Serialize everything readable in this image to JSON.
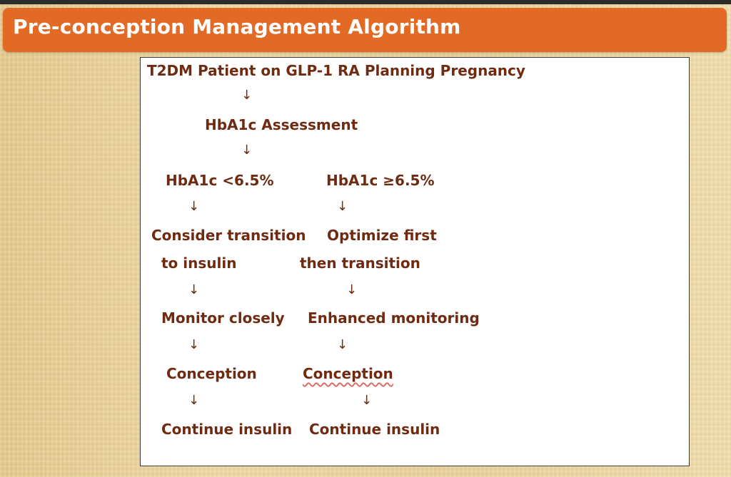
{
  "title": "Pre-conception Management Algorithm",
  "flow": {
    "start": "T2DM Patient on GLP-1 RA Planning Pregnancy",
    "assessment": "HbA1c Assessment",
    "arrow": "↓",
    "left": {
      "condition": "HbA1c <6.5%",
      "action_line1": "Consider transition",
      "action_line2": "to insulin",
      "monitor": "Monitor closely",
      "conception": "Conception",
      "continue": "Continue insulin"
    },
    "right": {
      "condition": "HbA1c ≥6.5%",
      "action_line1": "Optimize first",
      "action_line2": "then transition",
      "monitor": "Enhanced monitoring",
      "conception": "Conception",
      "continue": "Continue insulin"
    }
  }
}
